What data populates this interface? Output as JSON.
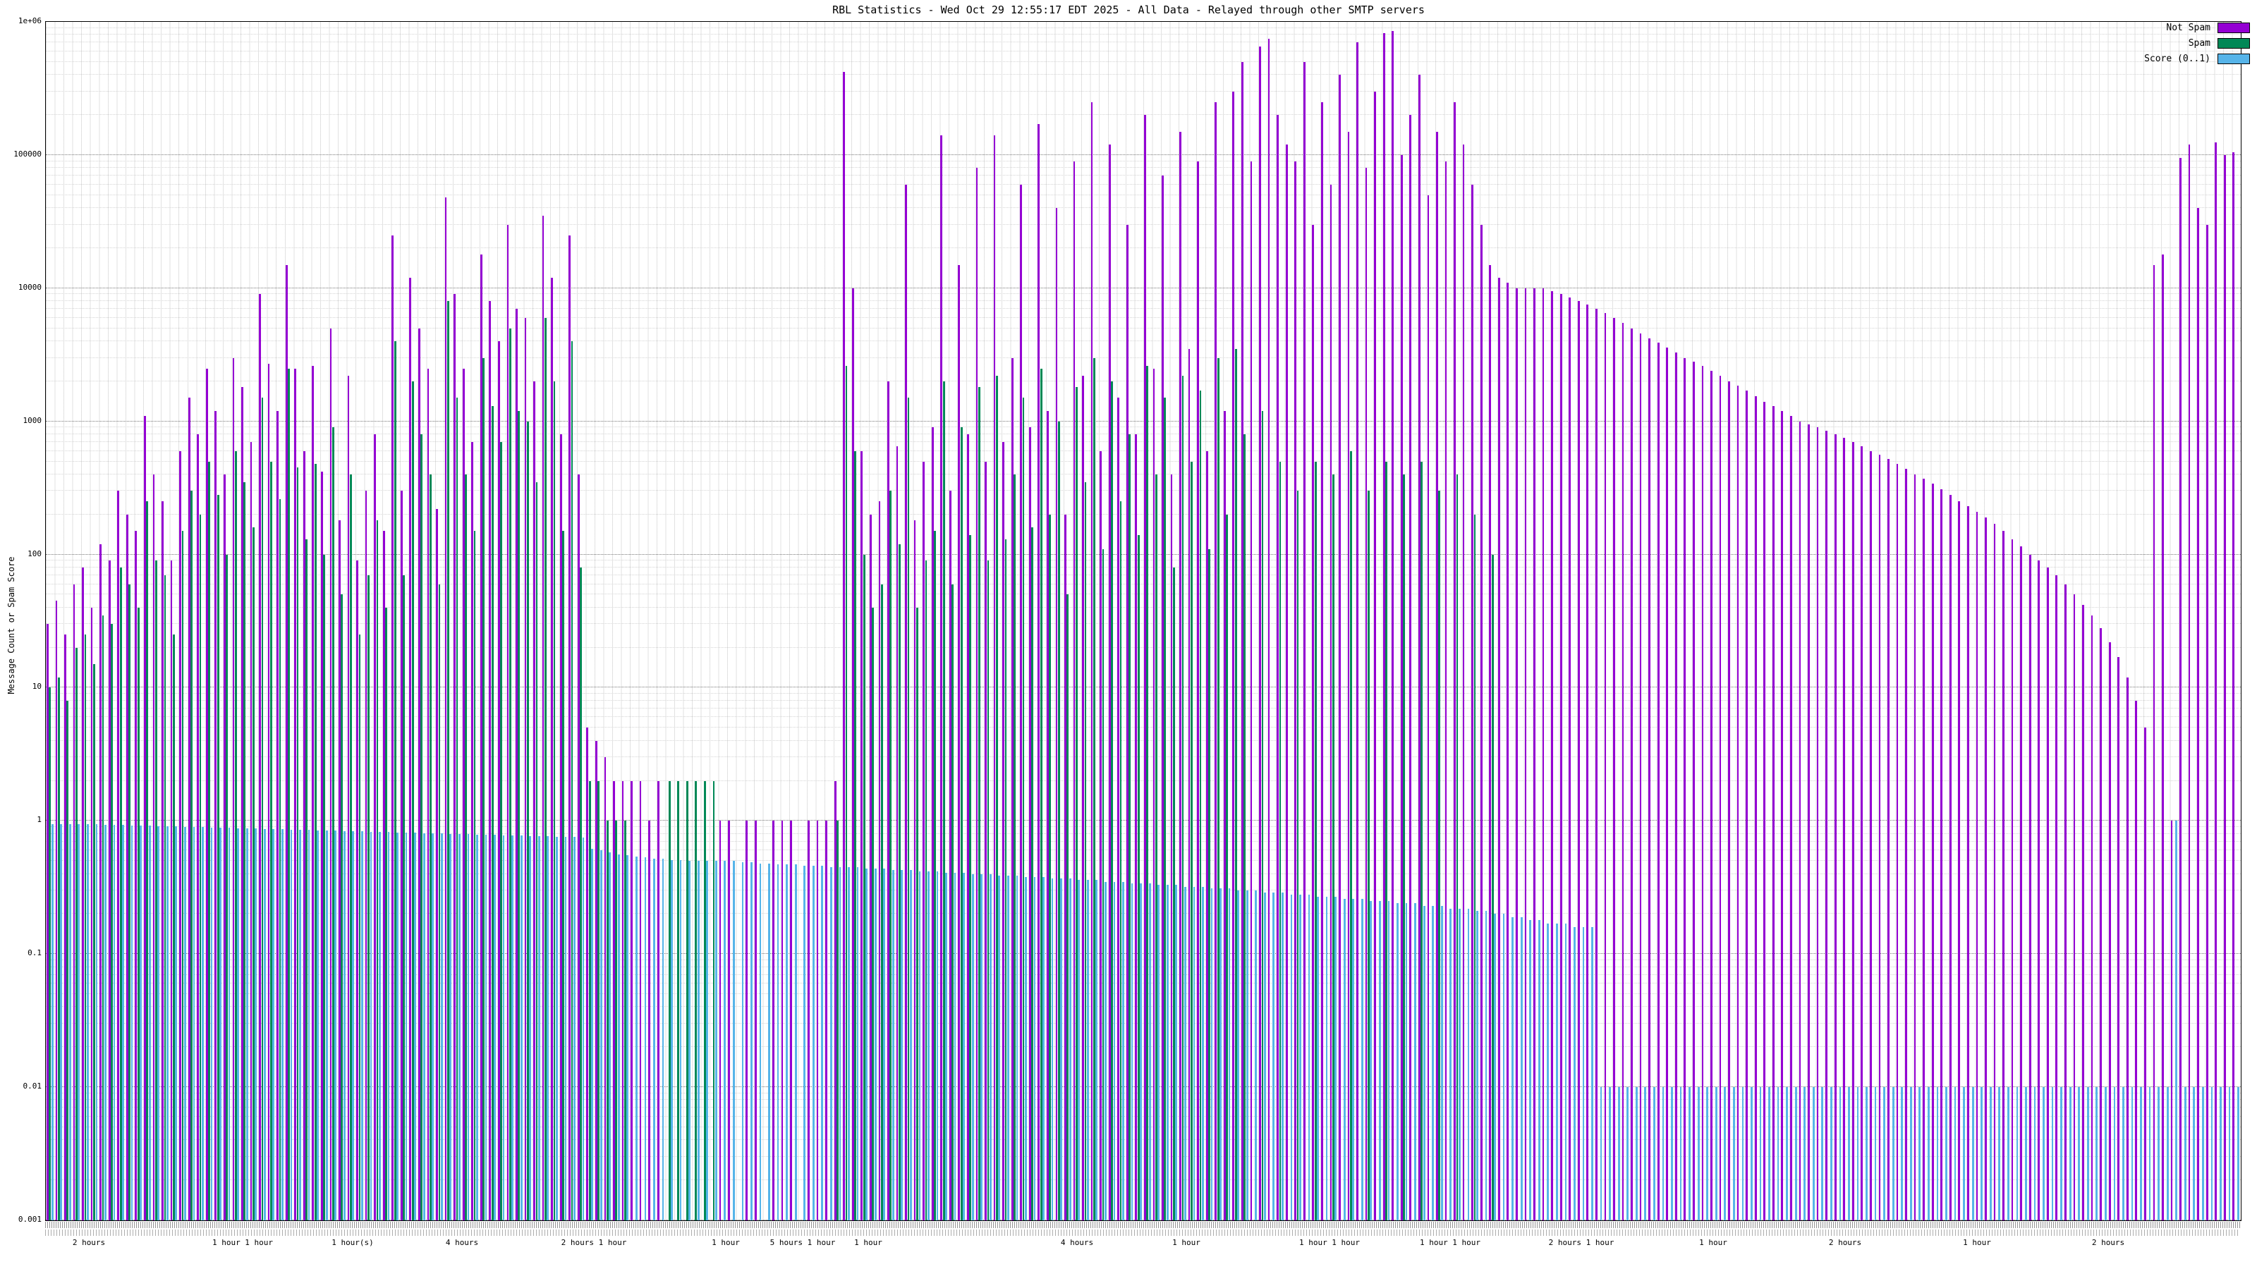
{
  "chart_data": {
    "type": "bar",
    "title": "RBL Statistics - Wed Oct 29 12:55:17 EDT 2025 - All Data - Relayed through other SMTP servers",
    "xlabel": "",
    "ylabel": "Message Count or Spam Score",
    "y_scale": "log",
    "ylim": [
      0.001,
      1000000
    ],
    "y_ticks": [
      "0.001",
      "0.01",
      "0.1",
      "1",
      "10",
      "100",
      "1000",
      "10000",
      "100000",
      "1e+06"
    ],
    "grid": "on",
    "legend_position": "top-right",
    "legend": [
      {
        "name": "Not Spam",
        "color": "#9400D3"
      },
      {
        "name": "Spam",
        "color": "#008856"
      },
      {
        "name": "Score (0..1)",
        "color": "#56B4E9"
      }
    ],
    "series_order": [
      "not_spam_count",
      "spam_count",
      "spam_score"
    ],
    "x_group_labels": [
      {
        "pos": 0.02,
        "label": "2 hours"
      },
      {
        "pos": 0.09,
        "label": "1 hour 1 hour"
      },
      {
        "pos": 0.14,
        "label": "1 hour(s)"
      },
      {
        "pos": 0.19,
        "label": "4 hours"
      },
      {
        "pos": 0.25,
        "label": "2 hours 1 hour"
      },
      {
        "pos": 0.31,
        "label": "1 hour"
      },
      {
        "pos": 0.345,
        "label": "5 hours 1 hour"
      },
      {
        "pos": 0.375,
        "label": "1 hour"
      },
      {
        "pos": 0.47,
        "label": "4 hours"
      },
      {
        "pos": 0.52,
        "label": "1 hour"
      },
      {
        "pos": 0.585,
        "label": "1 hour 1 hour"
      },
      {
        "pos": 0.64,
        "label": "1 hour 1 hour"
      },
      {
        "pos": 0.7,
        "label": "2 hours 1 hour"
      },
      {
        "pos": 0.76,
        "label": "1 hour"
      },
      {
        "pos": 0.82,
        "label": "2 hours"
      },
      {
        "pos": 0.88,
        "label": "1 hour"
      },
      {
        "pos": 0.94,
        "label": "2 hours"
      }
    ],
    "bars": [
      [
        30,
        10,
        0.95
      ],
      [
        45,
        12,
        0.95
      ],
      [
        25,
        8,
        0.95
      ],
      [
        60,
        20,
        0.94
      ],
      [
        80,
        25,
        0.94
      ],
      [
        40,
        15,
        0.94
      ],
      [
        120,
        35,
        0.93
      ],
      [
        90,
        30,
        0.93
      ],
      [
        300,
        80,
        0.93
      ],
      [
        200,
        60,
        0.92
      ],
      [
        150,
        40,
        0.92
      ],
      [
        1100,
        250,
        0.92
      ],
      [
        400,
        90,
        0.91
      ],
      [
        250,
        70,
        0.91
      ],
      [
        90,
        25,
        0.91
      ],
      [
        600,
        150,
        0.9
      ],
      [
        1500,
        300,
        0.9
      ],
      [
        800,
        200,
        0.9
      ],
      [
        2500,
        500,
        0.89
      ],
      [
        1200,
        280,
        0.89
      ],
      [
        400,
        100,
        0.89
      ],
      [
        3000,
        600,
        0.88
      ],
      [
        1800,
        350,
        0.88
      ],
      [
        700,
        160,
        0.88
      ],
      [
        9000,
        1500,
        0.87
      ],
      [
        2700,
        500,
        0.87
      ],
      [
        1200,
        260,
        0.87
      ],
      [
        15000,
        2500,
        0.86
      ],
      [
        2500,
        450,
        0.86
      ],
      [
        600,
        130,
        0.86
      ],
      [
        2600,
        480,
        0.85
      ],
      [
        420,
        100,
        0.85
      ],
      [
        5000,
        900,
        0.85
      ],
      [
        180,
        50,
        0.84
      ],
      [
        2200,
        400,
        0.84
      ],
      [
        90,
        25,
        0.84
      ],
      [
        300,
        70,
        0.83
      ],
      [
        800,
        180,
        0.83
      ],
      [
        150,
        40,
        0.83
      ],
      [
        25000,
        4000,
        0.82
      ],
      [
        300,
        70,
        0.82
      ],
      [
        12000,
        2000,
        0.82
      ],
      [
        5000,
        800,
        0.81
      ],
      [
        2500,
        400,
        0.81
      ],
      [
        220,
        60,
        0.81
      ],
      [
        48000,
        8000,
        0.8
      ],
      [
        9000,
        1500,
        0.8
      ],
      [
        2500,
        400,
        0.8
      ],
      [
        700,
        150,
        0.79
      ],
      [
        18000,
        3000,
        0.79
      ],
      [
        8000,
        1300,
        0.79
      ],
      [
        4000,
        700,
        0.78
      ],
      [
        30000,
        5000,
        0.78
      ],
      [
        7000,
        1200,
        0.78
      ],
      [
        6000,
        1000,
        0.77
      ],
      [
        2000,
        350,
        0.77
      ],
      [
        35000,
        6000,
        0.77
      ],
      [
        12000,
        2000,
        0.76
      ],
      [
        800,
        150,
        0.76
      ],
      [
        25000,
        4000,
        0.76
      ],
      [
        400,
        80,
        0.75
      ],
      [
        5,
        2,
        0.62
      ],
      [
        4,
        2,
        0.6
      ],
      [
        3,
        1,
        0.58
      ],
      [
        2,
        1,
        0.56
      ],
      [
        2,
        1,
        0.55
      ],
      [
        2,
        0,
        0.54
      ],
      [
        2,
        0,
        0.53
      ],
      [
        1,
        0,
        0.52
      ],
      [
        2,
        0,
        0.52
      ],
      [
        0,
        2,
        0.51
      ],
      [
        0,
        2,
        0.51
      ],
      [
        0,
        2,
        0.5
      ],
      [
        0,
        2,
        0.5
      ],
      [
        0,
        2,
        0.5
      ],
      [
        0,
        2,
        0.5
      ],
      [
        1,
        0,
        0.5
      ],
      [
        1,
        0,
        0.5
      ],
      [
        0,
        0,
        0.49
      ],
      [
        1,
        0,
        0.49
      ],
      [
        1,
        0,
        0.48
      ],
      [
        0,
        0,
        0.48
      ],
      [
        1,
        0,
        0.47
      ],
      [
        1,
        0,
        0.47
      ],
      [
        1,
        0,
        0.47
      ],
      [
        0,
        0,
        0.46
      ],
      [
        1,
        0,
        0.46
      ],
      [
        1,
        0,
        0.46
      ],
      [
        1,
        0,
        0.45
      ],
      [
        2,
        1,
        0.45
      ],
      [
        420000,
        2600,
        0.45
      ],
      [
        10000,
        600,
        0.45
      ],
      [
        600,
        100,
        0.44
      ],
      [
        200,
        40,
        0.44
      ],
      [
        250,
        60,
        0.44
      ],
      [
        2000,
        300,
        0.43
      ],
      [
        650,
        120,
        0.43
      ],
      [
        60000,
        1500,
        0.43
      ],
      [
        180,
        40,
        0.42
      ],
      [
        500,
        90,
        0.42
      ],
      [
        900,
        150,
        0.42
      ],
      [
        140000,
        2000,
        0.41
      ],
      [
        300,
        60,
        0.41
      ],
      [
        15000,
        900,
        0.41
      ],
      [
        800,
        140,
        0.4
      ],
      [
        80000,
        1800,
        0.4
      ],
      [
        500,
        90,
        0.4
      ],
      [
        140000,
        2200,
        0.39
      ],
      [
        700,
        130,
        0.39
      ],
      [
        3000,
        400,
        0.39
      ],
      [
        60000,
        1500,
        0.38
      ],
      [
        900,
        160,
        0.38
      ],
      [
        170000,
        2500,
        0.38
      ],
      [
        1200,
        200,
        0.37
      ],
      [
        40000,
        1000,
        0.37
      ],
      [
        200,
        50,
        0.37
      ],
      [
        90000,
        1800,
        0.36
      ],
      [
        2200,
        350,
        0.36
      ],
      [
        250000,
        3000,
        0.36
      ],
      [
        600,
        110,
        0.35
      ],
      [
        120000,
        2000,
        0.35
      ],
      [
        1500,
        250,
        0.35
      ],
      [
        30000,
        800,
        0.34
      ],
      [
        800,
        140,
        0.34
      ],
      [
        200000,
        2600,
        0.34
      ],
      [
        2500,
        400,
        0.33
      ],
      [
        70000,
        1500,
        0.33
      ],
      [
        400,
        80,
        0.33
      ],
      [
        150000,
        2200,
        0.32
      ],
      [
        3500,
        500,
        0.32
      ],
      [
        90000,
        1700,
        0.32
      ],
      [
        600,
        110,
        0.31
      ],
      [
        250000,
        3000,
        0.31
      ],
      [
        1200,
        200,
        0.31
      ],
      [
        300000,
        3500,
        0.3
      ],
      [
        500000,
        800,
        0.3
      ],
      [
        90000,
        0,
        0.3
      ],
      [
        650000,
        1200,
        0.29
      ],
      [
        750000,
        0,
        0.29
      ],
      [
        200000,
        500,
        0.29
      ],
      [
        120000,
        0,
        0.28
      ],
      [
        90000,
        300,
        0.28
      ],
      [
        500000,
        0,
        0.28
      ],
      [
        30000,
        500,
        0.27
      ],
      [
        250000,
        0,
        0.27
      ],
      [
        60000,
        400,
        0.27
      ],
      [
        400000,
        0,
        0.26
      ],
      [
        150000,
        600,
        0.26
      ],
      [
        700000,
        0,
        0.26
      ],
      [
        80000,
        300,
        0.25
      ],
      [
        300000,
        0,
        0.25
      ],
      [
        820000,
        500,
        0.25
      ],
      [
        850000,
        0,
        0.24
      ],
      [
        100000,
        400,
        0.24
      ],
      [
        200000,
        0,
        0.24
      ],
      [
        400000,
        500,
        0.23
      ],
      [
        50000,
        0,
        0.23
      ],
      [
        150000,
        300,
        0.23
      ],
      [
        90000,
        0,
        0.22
      ],
      [
        250000,
        400,
        0.22
      ],
      [
        120000,
        0,
        0.22
      ],
      [
        60000,
        200,
        0.21
      ],
      [
        30000,
        0,
        0.21
      ],
      [
        15000,
        100,
        0.2
      ],
      [
        12000,
        0,
        0.2
      ],
      [
        11000,
        0,
        0.19
      ],
      [
        10000,
        0,
        0.19
      ],
      [
        10000,
        0,
        0.18
      ],
      [
        10000,
        0,
        0.18
      ],
      [
        10000,
        0,
        0.17
      ],
      [
        9500,
        0,
        0.17
      ],
      [
        9000,
        0,
        0.17
      ],
      [
        8500,
        0,
        0.16
      ],
      [
        8000,
        0,
        0.16
      ],
      [
        7500,
        0,
        0.16
      ],
      [
        7000,
        0,
        0.01
      ],
      [
        6500,
        0,
        0.01
      ],
      [
        6000,
        0,
        0.01
      ],
      [
        5500,
        0,
        0.01
      ],
      [
        5000,
        0,
        0.01
      ],
      [
        4600,
        0,
        0.01
      ],
      [
        4200,
        0,
        0.01
      ],
      [
        3900,
        0,
        0.01
      ],
      [
        3600,
        0,
        0.01
      ],
      [
        3300,
        0,
        0.01
      ],
      [
        3000,
        0,
        0.01
      ],
      [
        2800,
        0,
        0.01
      ],
      [
        2600,
        0,
        0.01
      ],
      [
        2400,
        0,
        0.01
      ],
      [
        2200,
        0,
        0.01
      ],
      [
        2000,
        0,
        0.01
      ],
      [
        1850,
        0,
        0.01
      ],
      [
        1700,
        0,
        0.01
      ],
      [
        1550,
        0,
        0.01
      ],
      [
        1400,
        0,
        0.01
      ],
      [
        1300,
        0,
        0.01
      ],
      [
        1200,
        0,
        0.01
      ],
      [
        1100,
        0,
        0.01
      ],
      [
        1000,
        0,
        0.01
      ],
      [
        950,
        0,
        0.01
      ],
      [
        900,
        0,
        0.01
      ],
      [
        850,
        0,
        0.01
      ],
      [
        800,
        0,
        0.01
      ],
      [
        750,
        0,
        0.01
      ],
      [
        700,
        0,
        0.01
      ],
      [
        650,
        0,
        0.01
      ],
      [
        600,
        0,
        0.01
      ],
      [
        560,
        0,
        0.01
      ],
      [
        520,
        0,
        0.01
      ],
      [
        480,
        0,
        0.01
      ],
      [
        440,
        0,
        0.01
      ],
      [
        400,
        0,
        0.01
      ],
      [
        370,
        0,
        0.01
      ],
      [
        340,
        0,
        0.01
      ],
      [
        310,
        0,
        0.01
      ],
      [
        280,
        0,
        0.01
      ],
      [
        250,
        0,
        0.01
      ],
      [
        230,
        0,
        0.01
      ],
      [
        210,
        0,
        0.01
      ],
      [
        190,
        0,
        0.01
      ],
      [
        170,
        0,
        0.01
      ],
      [
        150,
        0,
        0.01
      ],
      [
        130,
        0,
        0.01
      ],
      [
        115,
        0,
        0.01
      ],
      [
        100,
        0,
        0.01
      ],
      [
        90,
        0,
        0.01
      ],
      [
        80,
        0,
        0.01
      ],
      [
        70,
        0,
        0.01
      ],
      [
        60,
        0,
        0.01
      ],
      [
        50,
        0,
        0.01
      ],
      [
        42,
        0,
        0.01
      ],
      [
        35,
        0,
        0.01
      ],
      [
        28,
        0,
        0.01
      ],
      [
        22,
        0,
        0.01
      ],
      [
        17,
        0,
        0.01
      ],
      [
        12,
        0,
        0.01
      ],
      [
        8,
        0,
        0.01
      ],
      [
        5,
        0,
        0.01
      ],
      [
        15000,
        0,
        0.01
      ],
      [
        18000,
        0,
        0.01
      ],
      [
        1,
        0,
        1
      ],
      [
        95000,
        0,
        0.01
      ],
      [
        120000,
        0,
        0.01
      ],
      [
        40000,
        0,
        0.01
      ],
      [
        30000,
        0,
        0.01
      ],
      [
        125000,
        0,
        0.01
      ],
      [
        100000,
        0,
        0.01
      ],
      [
        105000,
        0,
        0.01
      ]
    ]
  }
}
